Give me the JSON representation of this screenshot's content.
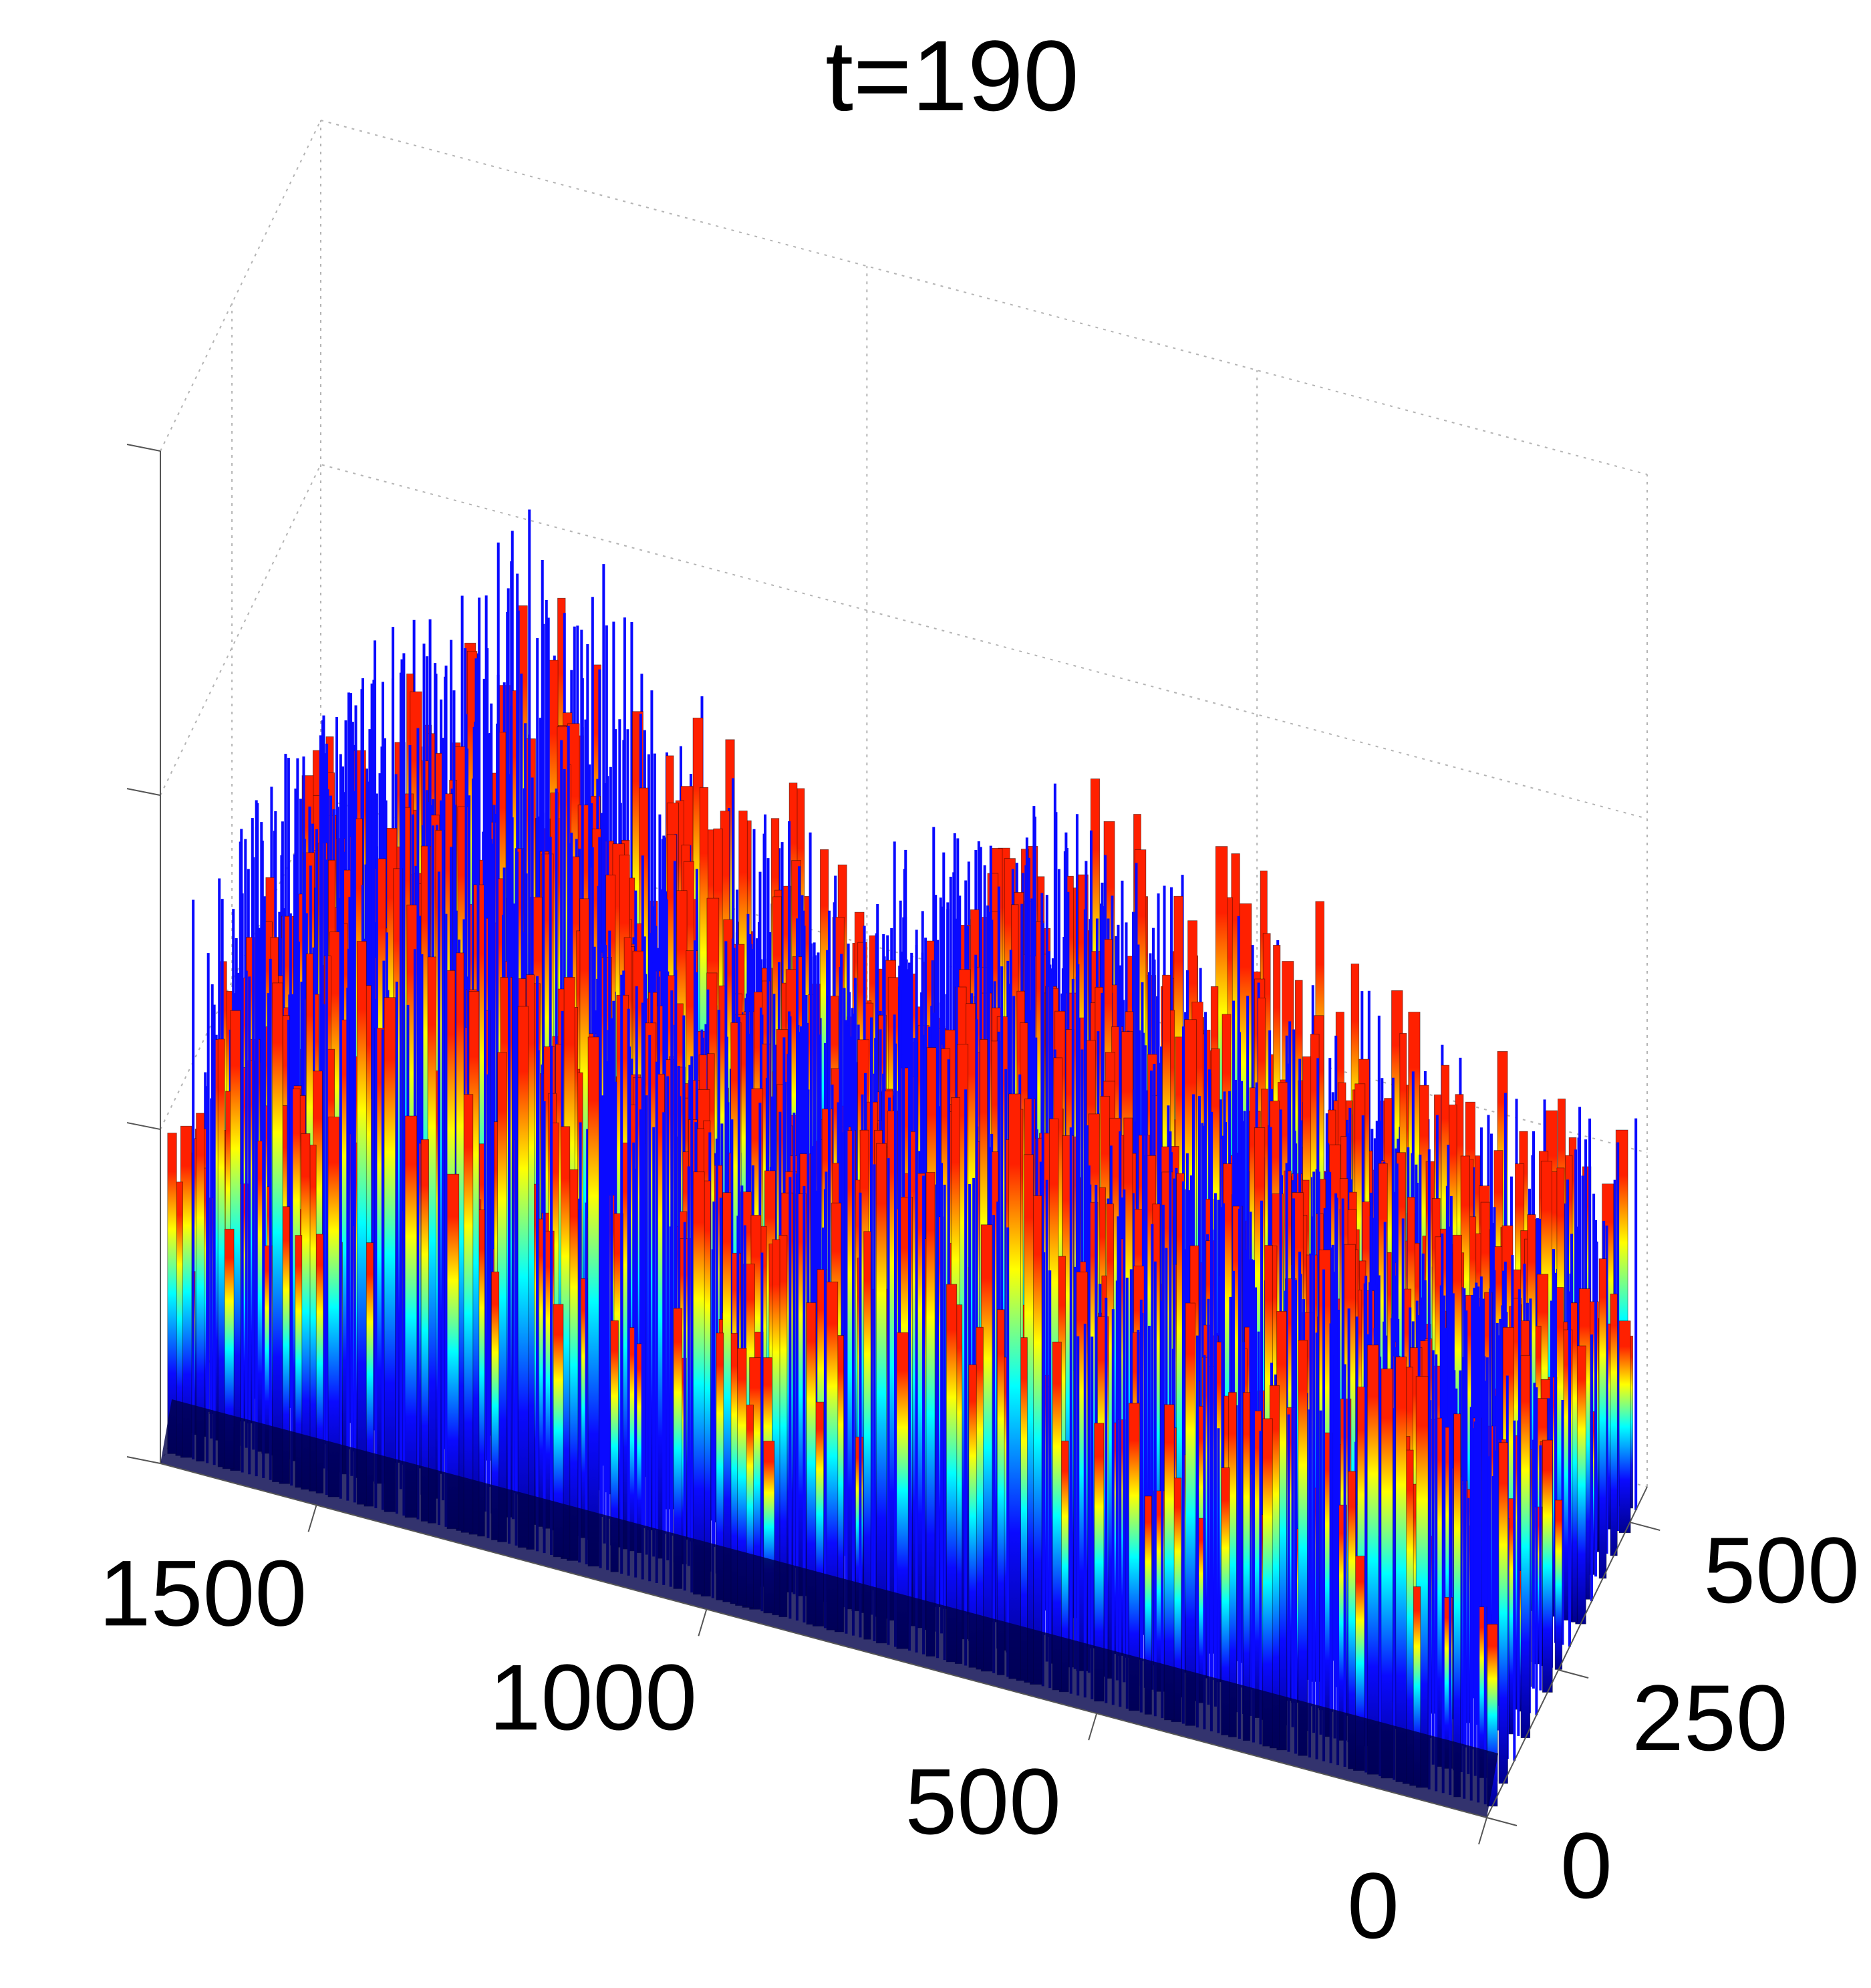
{
  "chart_data": {
    "type": "surface3d",
    "title": "t=190",
    "xlabel": "",
    "ylabel": "",
    "zlabel": "",
    "x_ticks": [
      "0",
      "500",
      "1000",
      "1500"
    ],
    "y_ticks": [
      "0",
      "250",
      "500"
    ],
    "z_ticks": [
      "",
      "",
      "",
      ""
    ],
    "xlim": [
      0,
      1700
    ],
    "ylim": [
      0,
      560
    ],
    "grid": true,
    "colormap": "jet",
    "colors": {
      "spike": "#0a0aff",
      "low": "#00008f",
      "mid_low": "#00ffff",
      "mid": "#ffff00",
      "high": "#ff2000",
      "edge": "#000000"
    },
    "envelope_x": [
      0,
      100,
      200,
      300,
      400,
      500,
      600,
      700,
      800,
      900,
      1000,
      1100,
      1200,
      1300,
      1400,
      1500,
      1600,
      1700
    ],
    "envelope_peak": [
      0.46,
      0.48,
      0.5,
      0.53,
      0.56,
      0.6,
      0.66,
      0.76,
      0.64,
      0.58,
      0.57,
      0.58,
      0.68,
      0.78,
      0.86,
      0.76,
      0.66,
      0.52
    ],
    "envelope_warm": [
      0.38,
      0.42,
      0.45,
      0.48,
      0.52,
      0.56,
      0.58,
      0.62,
      0.5,
      0.44,
      0.46,
      0.52,
      0.58,
      0.62,
      0.66,
      0.6,
      0.5,
      0.42
    ]
  }
}
